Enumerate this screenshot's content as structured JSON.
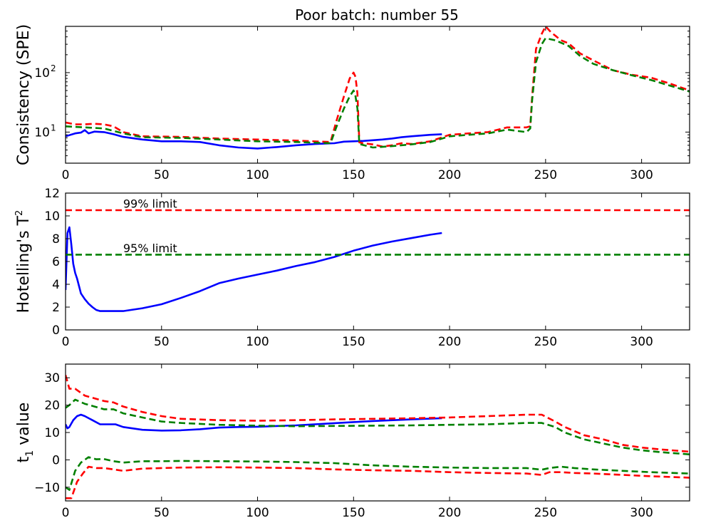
{
  "title": "Poor batch: number 55",
  "chart_data": [
    {
      "type": "line",
      "ylabel": "Consistency (SPE)",
      "yscale": "log",
      "xlim": [
        0,
        325
      ],
      "ylim": [
        3,
        600
      ],
      "xticks": [
        0,
        50,
        100,
        150,
        200,
        250,
        300
      ],
      "yticks": [
        {
          "value": 10,
          "base": "10",
          "exp": "1"
        },
        {
          "value": 100,
          "base": "10",
          "exp": "2"
        }
      ],
      "series": [
        {
          "color": "#0000ff",
          "style": "solid",
          "x": [
            0,
            5,
            8,
            10,
            12,
            15,
            20,
            25,
            30,
            40,
            50,
            60,
            70,
            80,
            90,
            100,
            110,
            120,
            130,
            140,
            145,
            150,
            155,
            160,
            165,
            170,
            175,
            180,
            190,
            196
          ],
          "y": [
            8.5,
            9.5,
            9.8,
            10.8,
            9.5,
            10.2,
            10.0,
            9.2,
            8.3,
            7.5,
            7.0,
            7.0,
            6.8,
            6.0,
            5.5,
            5.3,
            5.6,
            6.0,
            6.3,
            6.5,
            6.9,
            7.0,
            7.1,
            7.3,
            7.5,
            7.8,
            8.2,
            8.5,
            9.0,
            9.2
          ]
        },
        {
          "color": "#ff0000",
          "style": "dashed",
          "x": [
            0,
            5,
            10,
            15,
            20,
            25,
            30,
            40,
            60,
            80,
            100,
            120,
            138,
            141,
            145,
            148,
            150,
            151,
            152,
            153,
            155,
            160,
            165,
            170,
            175,
            180,
            190,
            200,
            210,
            220,
            230,
            235,
            240,
            242,
            243,
            245,
            248,
            250,
            253,
            255,
            258,
            262,
            268,
            275,
            285,
            295,
            305,
            315,
            325
          ],
          "y": [
            14.5,
            13.5,
            13.5,
            13.8,
            13.5,
            12.5,
            10.0,
            8.5,
            8.3,
            7.8,
            7.5,
            7.2,
            6.8,
            15,
            40,
            80,
            100,
            85,
            45,
            6.7,
            6.5,
            6.2,
            5.7,
            6.0,
            6.5,
            6.3,
            7.0,
            9.0,
            9.5,
            10.0,
            12.0,
            12.0,
            12.0,
            12.5,
            40,
            250,
            450,
            600,
            470,
            420,
            350,
            310,
            210,
            160,
            110,
            92,
            82,
            65,
            50
          ]
        },
        {
          "color": "#008000",
          "style": "dashed",
          "x": [
            0,
            10,
            20,
            30,
            40,
            60,
            80,
            100,
            120,
            138,
            141,
            145,
            148,
            150,
            151,
            152,
            153,
            160,
            170,
            180,
            190,
            200,
            210,
            220,
            230,
            240,
            242,
            243,
            245,
            248,
            250,
            255,
            262,
            268,
            275,
            285,
            295,
            305,
            315,
            325
          ],
          "y": [
            12.5,
            12.0,
            11.5,
            9.5,
            8.2,
            8.0,
            7.5,
            7.0,
            6.8,
            6.5,
            12,
            25,
            40,
            50,
            40,
            25,
            6.3,
            5.5,
            5.8,
            6.2,
            6.8,
            8.5,
            9.0,
            9.5,
            11.0,
            10.0,
            11.5,
            35,
            150,
            300,
            380,
            350,
            280,
            190,
            140,
            110,
            90,
            75,
            60,
            48
          ]
        }
      ]
    },
    {
      "type": "line",
      "ylabel_main": "Hotelling's T",
      "ylabel_sup": "2",
      "xlim": [
        0,
        325
      ],
      "ylim": [
        0,
        12
      ],
      "xticks": [
        0,
        50,
        100,
        150,
        200,
        250,
        300
      ],
      "yticks": [
        0,
        2,
        4,
        6,
        8,
        10,
        12
      ],
      "annotations": [
        {
          "text": "99% limit",
          "x": 30,
          "y": 10.6
        },
        {
          "text": "95% limit",
          "x": 30,
          "y": 6.7
        }
      ],
      "series": [
        {
          "color": "#0000ff",
          "style": "solid",
          "x": [
            0,
            1,
            2,
            3,
            4,
            5,
            6,
            8,
            10,
            12,
            14,
            16,
            18,
            20,
            25,
            30,
            40,
            50,
            60,
            70,
            80,
            90,
            100,
            110,
            120,
            130,
            140,
            150,
            160,
            170,
            180,
            190,
            196
          ],
          "y": [
            3.5,
            8.5,
            9.0,
            7.5,
            5.8,
            5.0,
            4.5,
            3.2,
            2.7,
            2.3,
            2.0,
            1.75,
            1.65,
            1.65,
            1.65,
            1.65,
            1.9,
            2.25,
            2.8,
            3.4,
            4.1,
            4.5,
            4.85,
            5.2,
            5.6,
            5.95,
            6.4,
            6.95,
            7.4,
            7.75,
            8.05,
            8.35,
            8.5
          ]
        },
        {
          "color": "#ff0000",
          "style": "dashed",
          "x": [
            0,
            325
          ],
          "y": [
            10.5,
            10.5
          ]
        },
        {
          "color": "#008000",
          "style": "dashed",
          "x": [
            0,
            325
          ],
          "y": [
            6.6,
            6.6
          ]
        }
      ]
    },
    {
      "type": "line",
      "ylabel_main": "t",
      "ylabel_sub": "1",
      "ylabel_rest": " value",
      "xlim": [
        0,
        325
      ],
      "ylim": [
        -15,
        35
      ],
      "xticks": [
        0,
        50,
        100,
        150,
        200,
        250,
        300
      ],
      "yticks": [
        -10,
        0,
        10,
        20,
        30
      ],
      "series": [
        {
          "color": "#0000ff",
          "style": "solid",
          "x": [
            0,
            1,
            2,
            4,
            6,
            8,
            10,
            14,
            18,
            22,
            26,
            30,
            40,
            50,
            60,
            70,
            80,
            90,
            100,
            120,
            140,
            160,
            180,
            196
          ],
          "y": [
            13,
            11.5,
            12,
            14.5,
            16,
            16.5,
            16,
            14.5,
            13,
            13,
            13,
            12,
            11,
            10.7,
            10.8,
            11.2,
            11.8,
            12,
            12.1,
            12.6,
            13.4,
            14.2,
            14.8,
            15.2
          ]
        },
        {
          "color": "#ff0000",
          "style": "dashed",
          "x": [
            0,
            2,
            5,
            10,
            15,
            20,
            25,
            30,
            40,
            50,
            60,
            80,
            100,
            120,
            140,
            160,
            180,
            200,
            220,
            240,
            248,
            255,
            260,
            270,
            280,
            290,
            300,
            310,
            325
          ],
          "y": [
            31,
            26,
            26,
            23.5,
            22.5,
            21.5,
            21,
            19.5,
            17.5,
            16,
            15,
            14.5,
            14.3,
            14.5,
            14.8,
            15,
            15.2,
            15.5,
            16,
            16.5,
            16.5,
            14,
            12,
            9,
            7.5,
            5.5,
            4.5,
            3.8,
            3
          ]
        },
        {
          "color": "#008000",
          "style": "dashed",
          "x": [
            0,
            2,
            5,
            10,
            15,
            20,
            25,
            30,
            40,
            50,
            60,
            80,
            100,
            120,
            140,
            160,
            180,
            200,
            220,
            240,
            248,
            255,
            260,
            270,
            280,
            290,
            300,
            310,
            325
          ],
          "y": [
            19,
            20,
            22,
            20.5,
            19.5,
            18.5,
            18.5,
            17,
            15.5,
            14,
            13.5,
            12.8,
            12.5,
            12.3,
            12.4,
            12.5,
            12.6,
            12.8,
            13,
            13.5,
            13.5,
            12,
            10,
            7.5,
            6,
            4.5,
            3.5,
            2.8,
            2
          ]
        },
        {
          "color": "#008000",
          "style": "dashed",
          "x": [
            0,
            2,
            5,
            8,
            12,
            16,
            20,
            25,
            30,
            40,
            50,
            60,
            80,
            100,
            120,
            140,
            160,
            180,
            200,
            220,
            240,
            248,
            252,
            258,
            265,
            275,
            290,
            305,
            325
          ],
          "y": [
            -10,
            -11,
            -4,
            -1,
            1,
            0.2,
            0.3,
            -0.5,
            -1,
            -0.5,
            -0.5,
            -0.4,
            -0.5,
            -0.6,
            -0.8,
            -1.2,
            -2,
            -2.5,
            -2.8,
            -3,
            -3,
            -3.6,
            -3,
            -2.5,
            -3,
            -3.5,
            -4,
            -4.5,
            -5
          ]
        },
        {
          "color": "#ff0000",
          "style": "dashed",
          "x": [
            0,
            3,
            6,
            9,
            12,
            16,
            20,
            25,
            30,
            40,
            50,
            60,
            80,
            100,
            120,
            140,
            160,
            180,
            200,
            220,
            240,
            248,
            252,
            258,
            265,
            275,
            290,
            305,
            325
          ],
          "y": [
            -14,
            -14,
            -8,
            -5,
            -2.5,
            -3,
            -3,
            -3.5,
            -4,
            -3.2,
            -3,
            -2.8,
            -2.7,
            -2.8,
            -3,
            -3.5,
            -3.8,
            -4,
            -4.5,
            -4.8,
            -5,
            -5.5,
            -4.5,
            -4.5,
            -4.8,
            -5,
            -5.5,
            -6,
            -6.5
          ]
        }
      ]
    }
  ]
}
